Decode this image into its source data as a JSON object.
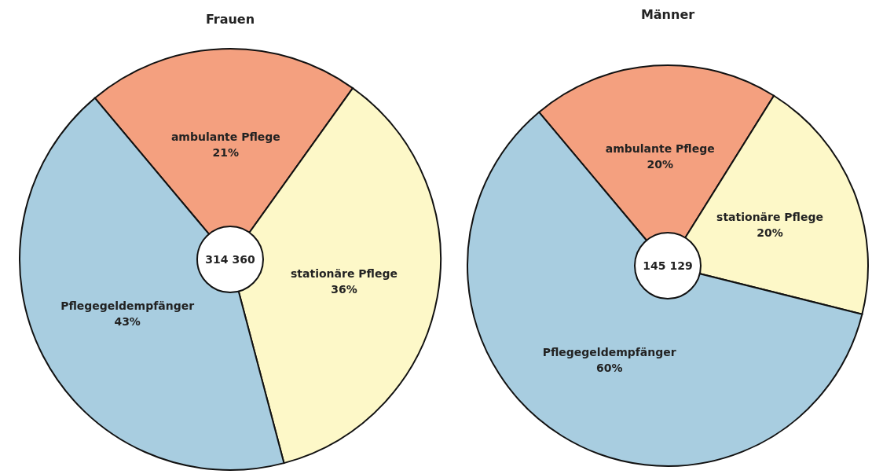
{
  "chart_data": [
    {
      "type": "pie",
      "title": "Frauen",
      "categories": [
        "ambulante Pflege",
        "stationäre Pflege",
        "Pflegegeldempfänger"
      ],
      "values": [
        21,
        36,
        43
      ],
      "value_labels": [
        "21%",
        "36%",
        "43%"
      ],
      "colors": [
        "#f4a07f",
        "#fdf8c8",
        "#a8cde0"
      ],
      "annotations": [
        "314 360"
      ]
    },
    {
      "type": "pie",
      "title": "Männer",
      "categories": [
        "ambulante Pflege",
        "stationäre Pflege",
        "Pflegegeldempfänger"
      ],
      "values": [
        20,
        20,
        60
      ],
      "value_labels": [
        "20%",
        "20%",
        "60%"
      ],
      "colors": [
        "#f4a07f",
        "#fdf8c8",
        "#a8cde0"
      ],
      "annotations": [
        "145 129"
      ]
    }
  ]
}
